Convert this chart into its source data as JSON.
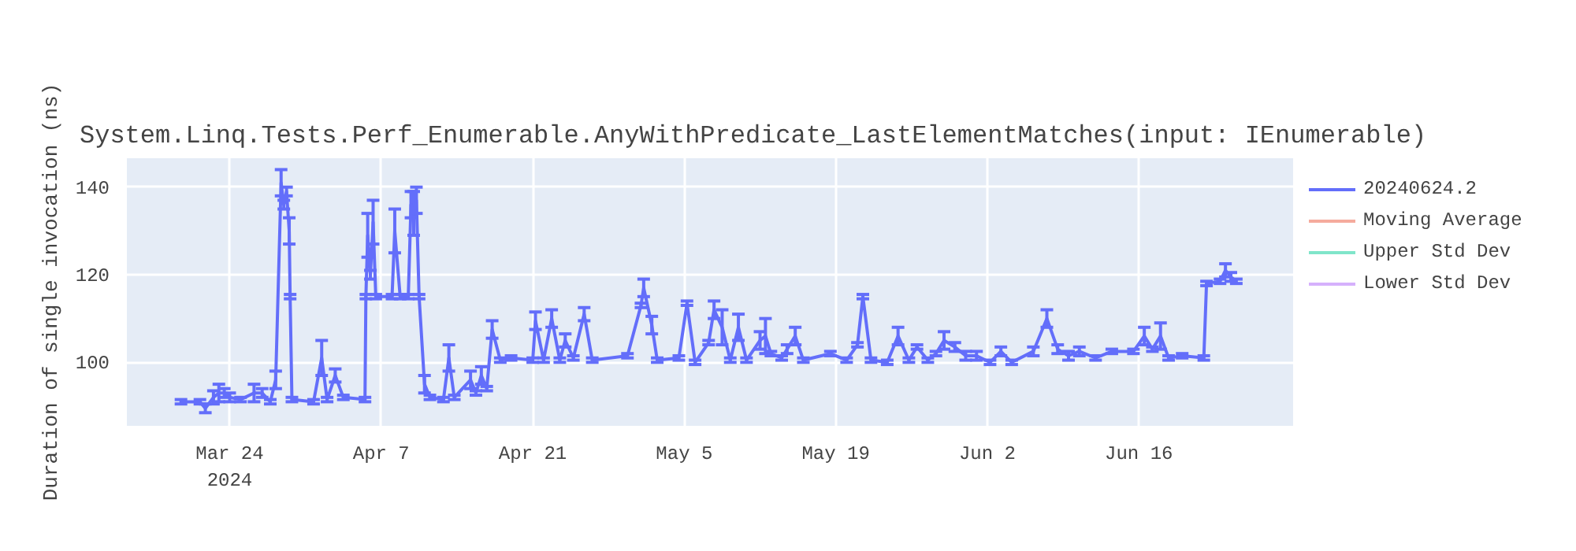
{
  "chart_data": {
    "type": "line",
    "title": "System.Linq.Tests.Perf_Enumerable.AnyWithPredicate_LastElementMatches(input: IEnumerable)",
    "ylabel": "Duration of single invocation (ns)",
    "xlim": [
      "2024-03-14T12:00",
      "2024-06-30T06:00"
    ],
    "xticks": [
      {
        "value": "2024-03-24",
        "label": "Mar 24\n2024"
      },
      {
        "value": "2024-04-07",
        "label": "Apr 7"
      },
      {
        "value": "2024-04-21",
        "label": "Apr 21"
      },
      {
        "value": "2024-05-05",
        "label": "May 5"
      },
      {
        "value": "2024-05-19",
        "label": "May 19"
      },
      {
        "value": "2024-06-02",
        "label": "Jun 2"
      },
      {
        "value": "2024-06-16",
        "label": "Jun 16"
      }
    ],
    "ylim": [
      85.5,
      146.6
    ],
    "yticks": [
      100,
      120,
      140
    ],
    "grid": true,
    "legend": "top right",
    "series": [
      {
        "name": "20240624.2",
        "color": "#636efa",
        "x": [
          "2024-03-19T12:00",
          "2024-03-21T06:00",
          "2024-03-21T18:00",
          "2024-03-22T12:00",
          "2024-03-23T00:00",
          "2024-03-23T12:00",
          "2024-03-24T00:00",
          "2024-03-25T00:00",
          "2024-03-26T06:00",
          "2024-03-27T00:00",
          "2024-03-27T18:00",
          "2024-03-28T06:00",
          "2024-03-28T18:00",
          "2024-03-29T00:00",
          "2024-03-29T06:00",
          "2024-03-29T12:00",
          "2024-03-29T14:00",
          "2024-03-29T18:00",
          "2024-03-31T18:00",
          "2024-04-01T12:00",
          "2024-04-02T00:00",
          "2024-04-02T18:00",
          "2024-04-03T12:00",
          "2024-04-05T12:00",
          "2024-04-05T14:00",
          "2024-04-05T18:00",
          "2024-04-06T00:00",
          "2024-04-06T06:00",
          "2024-04-06T12:00",
          "2024-04-08T00:00",
          "2024-04-08T06:00",
          "2024-04-08T18:00",
          "2024-04-09T12:00",
          "2024-04-09T18:00",
          "2024-04-10T00:00",
          "2024-04-10T06:00",
          "2024-04-10T12:00",
          "2024-04-11T00:00",
          "2024-04-11T12:00",
          "2024-04-12T18:00",
          "2024-04-13T06:00",
          "2024-04-13T18:00",
          "2024-04-15T06:00",
          "2024-04-15T18:00",
          "2024-04-16T06:00",
          "2024-04-16T18:00",
          "2024-04-17T06:00",
          "2024-04-18T00:00",
          "2024-04-19T00:00",
          "2024-04-21T00:00",
          "2024-04-21T06:00",
          "2024-04-22T00:00",
          "2024-04-22T18:00",
          "2024-04-23T12:00",
          "2024-04-24T00:00",
          "2024-04-24T18:00",
          "2024-04-25T18:00",
          "2024-04-26T12:00",
          "2024-04-29T18:00",
          "2024-05-01T00:00",
          "2024-05-01T06:00",
          "2024-05-02T00:00",
          "2024-05-02T12:00",
          "2024-05-04T12:00",
          "2024-05-05T06:00",
          "2024-05-06T00:00",
          "2024-05-07T06:00",
          "2024-05-07T18:00",
          "2024-05-08T12:00",
          "2024-05-09T06:00",
          "2024-05-10T00:00",
          "2024-05-10T18:00",
          "2024-05-12T00:00",
          "2024-05-12T12:00",
          "2024-05-13T00:00",
          "2024-05-14T00:00",
          "2024-05-14T12:00",
          "2024-05-15T06:00",
          "2024-05-16T00:00",
          "2024-05-18T12:00",
          "2024-05-20T00:00",
          "2024-05-21T00:00",
          "2024-05-21T12:00",
          "2024-05-22T06:00",
          "2024-05-23T18:00",
          "2024-05-24T18:00",
          "2024-05-25T18:00",
          "2024-05-26T12:00",
          "2024-05-27T12:00",
          "2024-05-28T06:00",
          "2024-05-29T00:00",
          "2024-05-30T00:00",
          "2024-05-31T00:00",
          "2024-06-01T00:00",
          "2024-06-02T06:00",
          "2024-06-03T06:00",
          "2024-06-04T06:00",
          "2024-06-06T06:00",
          "2024-06-07T12:00",
          "2024-06-08T12:00",
          "2024-06-09T12:00",
          "2024-06-10T12:00",
          "2024-06-12T00:00",
          "2024-06-13T12:00",
          "2024-06-15T12:00",
          "2024-06-16T12:00",
          "2024-06-17T06:00",
          "2024-06-18T00:00",
          "2024-06-18T18:00",
          "2024-06-20T00:00",
          "2024-06-22T00:00",
          "2024-06-22T06:00",
          "2024-06-23T12:00",
          "2024-06-24T00:00",
          "2024-06-24T12:00",
          "2024-06-25T00:00"
        ],
        "values": [
          91,
          91,
          89.5,
          92,
          93,
          93,
          92,
          91.5,
          93,
          93,
          91,
          96,
          141,
          136,
          139,
          130,
          115,
          91.5,
          91,
          101,
          91.5,
          97,
          92,
          91.5,
          115,
          129,
          120,
          132,
          115,
          115,
          130,
          115,
          115,
          136,
          134,
          137,
          115,
          95,
          92,
          91.5,
          101,
          92,
          96,
          93,
          97,
          94,
          107.5,
          100.5,
          101,
          100.5,
          109.5,
          100.5,
          110,
          100.5,
          105,
          101,
          111,
          100.5,
          101.5,
          113,
          117,
          108.5,
          100.5,
          101,
          113.5,
          100,
          104.5,
          112,
          108,
          100.5,
          108,
          100.5,
          105,
          106,
          102,
          101,
          103,
          106,
          100.5,
          102,
          100.5,
          104,
          115,
          100.5,
          100,
          106,
          100.5,
          103.5,
          100.5,
          102,
          105,
          103.5,
          101.5,
          101.5,
          100,
          102.5,
          100,
          102.5,
          110,
          103,
          101.5,
          102.5,
          101,
          102.5,
          102.5,
          106,
          103,
          106,
          101,
          101.5,
          101,
          118,
          118.5,
          121,
          119.5,
          118.5
        ],
        "errors": [
          0.5,
          0.5,
          1,
          1.5,
          2,
          1,
          1,
          0.5,
          2,
          1,
          0.5,
          2,
          3,
          1,
          1,
          3,
          0.5,
          0.5,
          0.5,
          4,
          0.5,
          1.5,
          0.5,
          0.5,
          0.5,
          5,
          1,
          5,
          0.5,
          0.5,
          5,
          0.5,
          0.5,
          3,
          5,
          3,
          0.5,
          2,
          0.5,
          0.5,
          3,
          0.5,
          2,
          0.5,
          2,
          0.5,
          2,
          0.5,
          0.5,
          0.5,
          2,
          0.5,
          2,
          0.5,
          1.5,
          0.5,
          1.5,
          0.5,
          0.5,
          0.5,
          2,
          2,
          0.5,
          0.5,
          0.5,
          0.5,
          0.5,
          2,
          4,
          0.5,
          3,
          0.5,
          2,
          4,
          0.5,
          0.5,
          1,
          2,
          0.5,
          0.5,
          0.5,
          0.5,
          0.5,
          0.5,
          0.5,
          2,
          0.5,
          0.5,
          0.5,
          0.5,
          2,
          1,
          1,
          1,
          0.5,
          1,
          0.5,
          1,
          2,
          1,
          1,
          1,
          0.5,
          0.5,
          0.5,
          2,
          0.5,
          3,
          0.5,
          0.5,
          0.5,
          0.5,
          0.5,
          1.5,
          1,
          0.5
        ]
      },
      {
        "name": "Moving Average",
        "color": "#f5ab9d"
      },
      {
        "name": "Upper Std Dev",
        "color": "#80e5ca"
      },
      {
        "name": "Lower Std Dev",
        "color": "#d5b1fc"
      }
    ]
  }
}
